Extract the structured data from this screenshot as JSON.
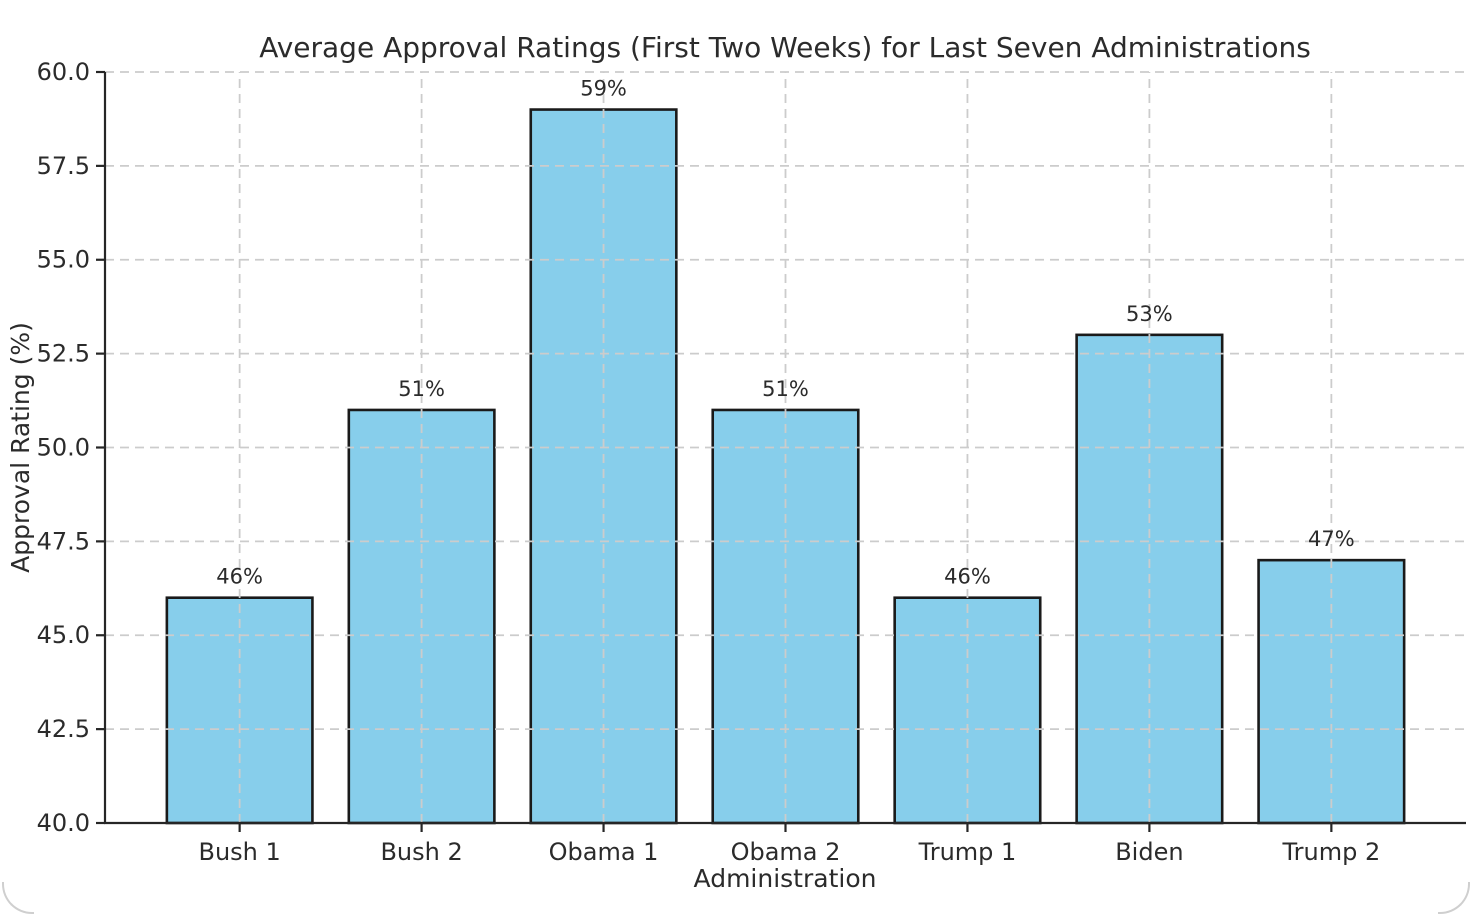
{
  "chart_data": {
    "type": "bar",
    "title": "Average Approval Ratings (First Two Weeks) for Last Seven Administrations",
    "xlabel": "Administration",
    "ylabel": "Approval Rating (%)",
    "categories": [
      "Bush 1",
      "Bush 2",
      "Obama 1",
      "Obama 2",
      "Trump 1",
      "Biden",
      "Trump 2"
    ],
    "values": [
      46,
      51,
      59,
      51,
      46,
      53,
      47
    ],
    "bar_labels": [
      "46%",
      "51%",
      "59%",
      "51%",
      "46%",
      "53%",
      "47%"
    ],
    "ylim": [
      40,
      60
    ],
    "yticks": [
      40,
      42.5,
      45,
      47.5,
      50,
      52.5,
      55,
      57.5,
      60
    ],
    "ytick_labels": [
      "40.0",
      "42.5",
      "45.0",
      "47.5",
      "50.0",
      "52.5",
      "55.0",
      "57.5",
      "60.0"
    ],
    "grid": "on",
    "grid_style": "dashed",
    "legend": "none",
    "colors": {
      "bar_fill": "#87CEEB",
      "bar_edge": "#1a1a1a",
      "grid": "#cccccc",
      "spine": "#262626",
      "text": "#2b2b2b"
    }
  }
}
